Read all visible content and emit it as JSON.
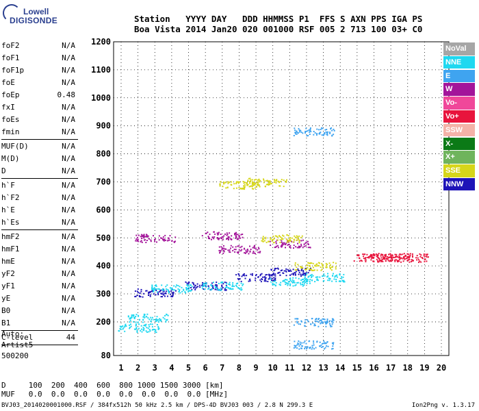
{
  "logo": {
    "line1": "Lowell",
    "line2": "DIGISONDE"
  },
  "header": {
    "row1": "Station   YYYY DAY   DDD HHMMSS P1  FFS S AXN PPS IGA PS",
    "row2": "Boa Vista 2014 Jan20 020 001000 RSF 005 2 713 100 03+ C0"
  },
  "params": [
    {
      "k": "foF2",
      "v": "N/A"
    },
    {
      "k": "foF1",
      "v": "N/A"
    },
    {
      "k": "foF1p",
      "v": "N/A"
    },
    {
      "k": "foE",
      "v": "N/A"
    },
    {
      "k": "foEp",
      "v": "0.48"
    },
    {
      "k": "fxI",
      "v": "N/A"
    },
    {
      "k": "foEs",
      "v": "N/A"
    },
    {
      "k": "fmin",
      "v": "N/A"
    }
  ],
  "params2": [
    {
      "k": "MUF(D)",
      "v": "N/A"
    },
    {
      "k": "M(D)",
      "v": "N/A"
    },
    {
      "k": "D",
      "v": "N/A"
    }
  ],
  "params3": [
    {
      "k": "h`F",
      "v": "N/A"
    },
    {
      "k": "h`F2",
      "v": "N/A"
    },
    {
      "k": "h`E",
      "v": "N/A"
    },
    {
      "k": "h`Es",
      "v": "N/A"
    }
  ],
  "params4": [
    {
      "k": "hmF2",
      "v": "N/A"
    },
    {
      "k": "hmF1",
      "v": "N/A"
    },
    {
      "k": "hmE",
      "v": "N/A"
    },
    {
      "k": "yF2",
      "v": "N/A"
    },
    {
      "k": "yF1",
      "v": "N/A"
    },
    {
      "k": "yE",
      "v": "N/A"
    },
    {
      "k": "B0",
      "v": "N/A"
    },
    {
      "k": "B1",
      "v": "N/A"
    }
  ],
  "clevel": {
    "k": "C-level",
    "v": "44"
  },
  "auto": {
    "line1": "Auto:",
    "line2": "Artist5",
    "line3": "500200"
  },
  "legend": [
    {
      "label": "NoVal",
      "color": "#a6a6a6"
    },
    {
      "label": "NNE",
      "color": "#1fd8f0"
    },
    {
      "label": "E",
      "color": "#3fa4f0"
    },
    {
      "label": "W",
      "color": "#a3149a"
    },
    {
      "label": "Vo-",
      "color": "#f0479a"
    },
    {
      "label": "Vo+",
      "color": "#e8143c"
    },
    {
      "label": "SSW",
      "color": "#f4b2a8"
    },
    {
      "label": "X-",
      "color": "#0b7a16"
    },
    {
      "label": "X+",
      "color": "#6fb45c"
    },
    {
      "label": "SSE",
      "color": "#d6d61a"
    },
    {
      "label": "NNW",
      "color": "#1e14b8"
    }
  ],
  "bottom": {
    "d_row": "D     100  200  400  600  800 1000 1500 3000 [km]",
    "muf_row": "MUF   0.0  0.0  0.0  0.0  0.0  0.0  0.0  0.0 [MHz]"
  },
  "footer": "BVJ03_2014020001000.RSF / 384fx512h 50 kHz 2.5 km / DPS-4D BVJ03 003 / 2.8 N 299.3 E",
  "version": "Ion2Png v. 1.3.17",
  "chart_data": {
    "type": "scatter",
    "x_ticks": [
      "1",
      "2",
      "3",
      "4",
      "5",
      "6",
      "7",
      "8",
      "9",
      "10",
      "11",
      "12",
      "13",
      "14",
      "15",
      "16",
      "17",
      "18",
      "19",
      "20"
    ],
    "y_ticks": [
      "80",
      "200",
      "300",
      "400",
      "500",
      "600",
      "700",
      "800",
      "900",
      "1000",
      "1100",
      "1200"
    ],
    "xlim": [
      1,
      20
    ],
    "ylim": [
      80,
      1200
    ],
    "traces": [
      {
        "name": "NNW",
        "color": "#1e14b8",
        "x": [
          3.0,
          6.0,
          9.0,
          11.0
        ],
        "y": [
          305,
          330,
          360,
          380
        ]
      },
      {
        "name": "NNE",
        "color": "#1fd8f0",
        "x": [
          2.0,
          2.6,
          4.0,
          7.0,
          11.0,
          13.0
        ],
        "y": [
          180,
          215,
          320,
          330,
          345,
          360
        ]
      },
      {
        "name": "W",
        "color": "#a3149a",
        "x": [
          3.0,
          7.0,
          8.0,
          11.0
        ],
        "y": [
          500,
          510,
          460,
          480
        ]
      },
      {
        "name": "SSE",
        "color": "#d6d61a",
        "x": [
          8.0,
          9.6,
          10.5,
          12.5
        ],
        "y": [
          690,
          700,
          500,
          400
        ]
      },
      {
        "name": "E",
        "color": "#3fa4f0",
        "x": [
          12.4,
          12.4,
          12.4
        ],
        "y": [
          880,
          200,
          120
        ]
      },
      {
        "name": "Vo+",
        "color": "#e8143c",
        "x": [
          16.0,
          17.0,
          18.0
        ],
        "y": [
          430,
          432,
          430
        ]
      }
    ]
  }
}
